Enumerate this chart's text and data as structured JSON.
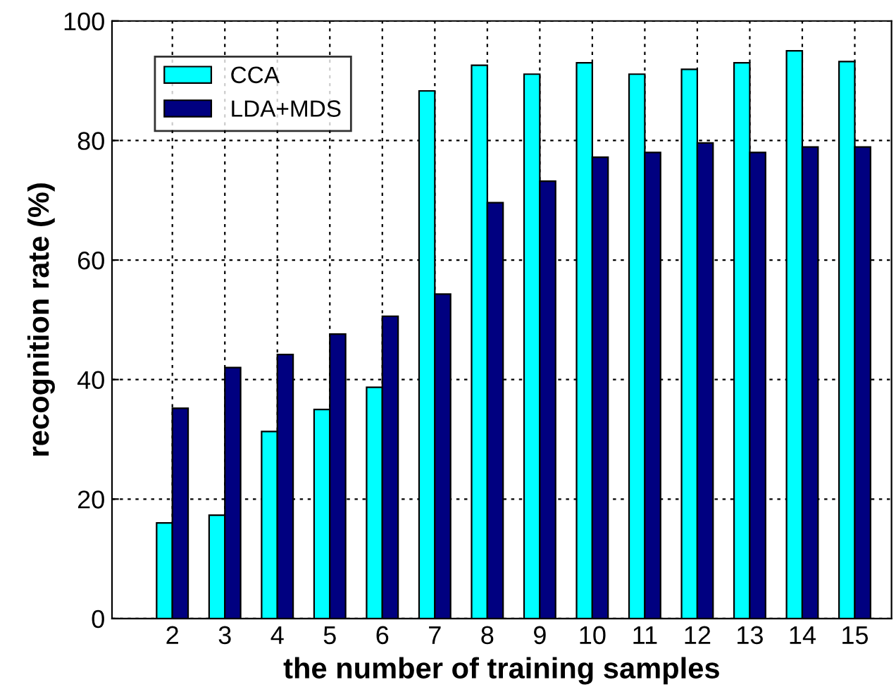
{
  "chart_data": {
    "type": "bar",
    "xlabel": "the number of training samples",
    "ylabel": "recognition rate (%)",
    "categories": [
      "2",
      "3",
      "4",
      "5",
      "6",
      "7",
      "8",
      "9",
      "10",
      "11",
      "12",
      "13",
      "14",
      "15"
    ],
    "series": [
      {
        "name": "CCA",
        "color": "#00ffff",
        "values": [
          16.0,
          17.3,
          31.3,
          35.0,
          38.7,
          88.3,
          92.6,
          91.1,
          93.0,
          91.1,
          91.9,
          93.0,
          95.0,
          93.2
        ]
      },
      {
        "name": "LDA+MDS",
        "color": "#000080",
        "values": [
          35.2,
          42.0,
          44.2,
          47.6,
          50.6,
          54.3,
          69.6,
          73.2,
          77.2,
          78.0,
          79.6,
          78.0,
          78.9,
          78.9
        ]
      }
    ],
    "ylim": [
      0,
      100
    ],
    "yticks": [
      0,
      20,
      40,
      60,
      80,
      100
    ],
    "grid": true,
    "legend": "top left"
  }
}
